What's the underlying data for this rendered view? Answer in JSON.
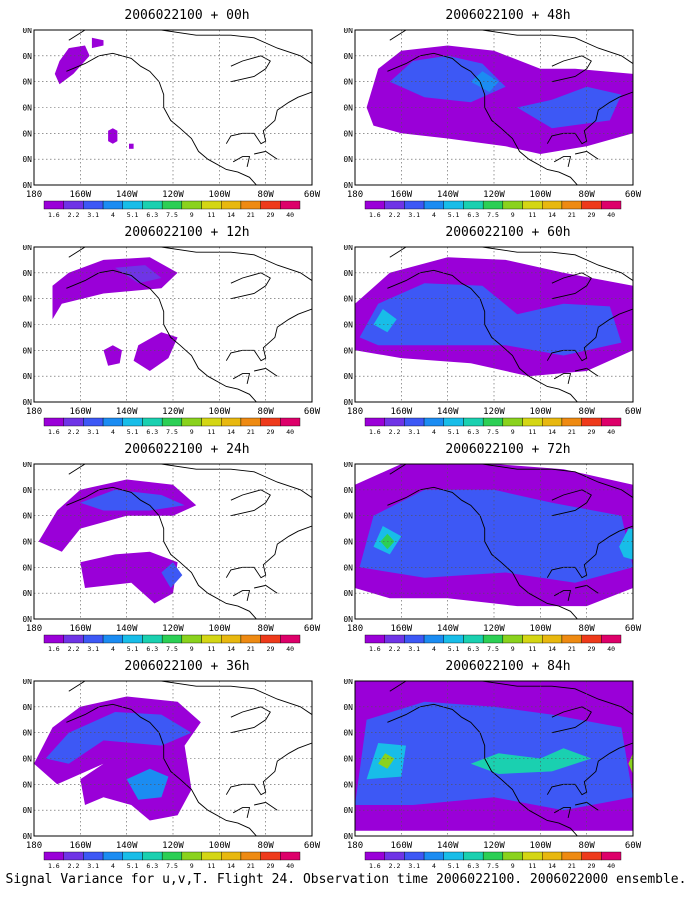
{
  "caption": "Signal Variance for u,v,T. Flight 24. Observation time 2006022100. 2006022000 ensemble.",
  "lat_labels": [
    "70N",
    "60N",
    "50N",
    "40N",
    "30N",
    "20N",
    "10N"
  ],
  "lon_labels": [
    "180",
    "160W",
    "140W",
    "120W",
    "100W",
    "80W",
    "60W"
  ],
  "colorbar": {
    "labels": [
      "1.6",
      "2.2",
      "3.1",
      "4",
      "5.1",
      "6.3",
      "7.5",
      "9",
      "11",
      "14",
      "21",
      "29",
      "40"
    ],
    "colors": [
      "#9a00d8",
      "#6f34e6",
      "#3d58f5",
      "#1b8cf2",
      "#18bde8",
      "#1ad0b0",
      "#2ccf55",
      "#8ad21d",
      "#d4d614",
      "#e8b80f",
      "#ee8a12",
      "#ee3a1b",
      "#dd006a"
    ]
  },
  "panels": [
    {
      "id": "p00",
      "title": "2006022100 + 00h"
    },
    {
      "id": "p48",
      "title": "2006022100 + 48h"
    },
    {
      "id": "p12",
      "title": "2006022100 + 12h"
    },
    {
      "id": "p60",
      "title": "2006022100 + 60h"
    },
    {
      "id": "p24",
      "title": "2006022100 + 24h"
    },
    {
      "id": "p72",
      "title": "2006022100 + 72h"
    },
    {
      "id": "p36",
      "title": "2006022100 + 36h"
    },
    {
      "id": "p84",
      "title": "2006022100 + 84h"
    }
  ]
}
